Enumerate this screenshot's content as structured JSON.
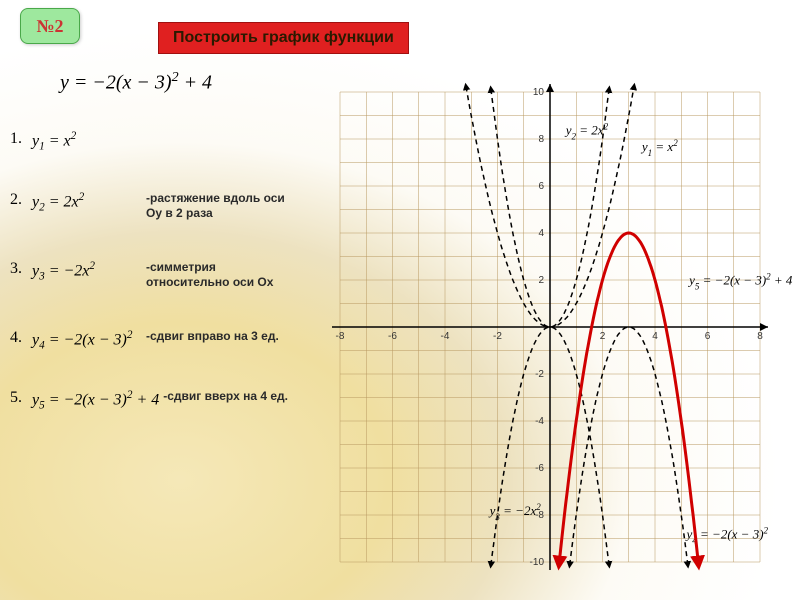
{
  "badge": "№2",
  "title": "Построить график функции",
  "main_equation_html": "y = −2(x − 3)<span class='sup'>2</span> + 4",
  "steps": [
    {
      "num": "1.",
      "eq_html": "y<span class='sub'>1</span> = x<span class='sup'>2</span>",
      "note": ""
    },
    {
      "num": "2.",
      "eq_html": "y<span class='sub'>2</span> = 2x<span class='sup'>2</span>",
      "note": "-растяжение вдоль оси Oy в 2 раза"
    },
    {
      "num": "3.",
      "eq_html": "y<span class='sub'>3</span> = −2x<span class='sup'>2</span>",
      "note": "-симметрия относительно оси Ox"
    },
    {
      "num": "4.",
      "eq_html": "y<span class='sub'>4</span> = −2(x − 3)<span class='sup'>2</span>",
      "note": "-сдвиг вправо на 3 ед."
    },
    {
      "num": "5.",
      "eq_html": "y<span class='sub'>5</span> = −2(x − 3)<span class='sup'>2</span> + 4",
      "note": "-сдвиг вверх на 4 ед."
    }
  ],
  "chart": {
    "xlim": [
      -8,
      8
    ],
    "ylim": [
      -10,
      10
    ],
    "xtick_step": 2,
    "ytick_step": 2,
    "grid_color": "#b89860",
    "axis_color": "#000000",
    "background_color": "transparent",
    "curves": [
      {
        "name": "y1",
        "type": "parabola",
        "a": 1,
        "h": 0,
        "k": 0,
        "style": "dashed",
        "label_html": "y<tspan baseline-shift='sub' font-size='9'>1</tspan> = x<tspan baseline-shift='super' font-size='9'>2</tspan>",
        "label_x": 3.5,
        "label_y": 7.5
      },
      {
        "name": "y2",
        "type": "parabola",
        "a": 2,
        "h": 0,
        "k": 0,
        "style": "dashed",
        "label_html": "y<tspan baseline-shift='sub' font-size='9'>2</tspan> = 2x<tspan baseline-shift='super' font-size='9'>2</tspan>",
        "label_x": 0.6,
        "label_y": 8.2
      },
      {
        "name": "y3",
        "type": "parabola",
        "a": -2,
        "h": 0,
        "k": 0,
        "style": "dashed",
        "label_html": "y<tspan baseline-shift='sub' font-size='9'>3</tspan> = −2x<tspan baseline-shift='super' font-size='9'>2</tspan>",
        "label_x": -2.3,
        "label_y": -8
      },
      {
        "name": "y4",
        "type": "parabola",
        "a": -2,
        "h": 3,
        "k": 0,
        "style": "dashed",
        "label_html": "y<tspan baseline-shift='sub' font-size='9'>4</tspan> = −2(x − 3)<tspan baseline-shift='super' font-size='9'>2</tspan>",
        "label_x": 5.2,
        "label_y": -9
      },
      {
        "name": "y5",
        "type": "parabola",
        "a": -2,
        "h": 3,
        "k": 4,
        "style": "solid",
        "label_html": "y<tspan baseline-shift='sub' font-size='9'>5</tspan> = −2(x − 3)<tspan baseline-shift='super' font-size='9'>2</tspan> + 4",
        "label_x": 5.3,
        "label_y": 1.8
      }
    ],
    "solid_color": "#d00000",
    "dashed_color": "#000000"
  }
}
